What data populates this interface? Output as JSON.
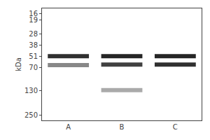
{
  "chart_data": {
    "type": "scatter",
    "marker": "line",
    "categories": [
      "A",
      "B",
      "C"
    ],
    "series": [
      {
        "values": [
          65,
          64,
          64
        ],
        "colors": [
          "#888888",
          "#404040",
          "#303030"
        ]
      },
      {
        "values": [
          51,
          51,
          51
        ],
        "colors": [
          "#303030",
          "#252525",
          "#252525"
        ]
      },
      {
        "values": [
          null,
          128,
          null
        ],
        "colors": [
          "#aaaaaa",
          "#aaaaaa",
          "#aaaaaa"
        ]
      }
    ],
    "y_label": "kDa",
    "log": "y",
    "ylim": [
      290,
      14
    ],
    "yticks": [
      250,
      130,
      70,
      51,
      38,
      28,
      19,
      16
    ],
    "grid": false
  }
}
